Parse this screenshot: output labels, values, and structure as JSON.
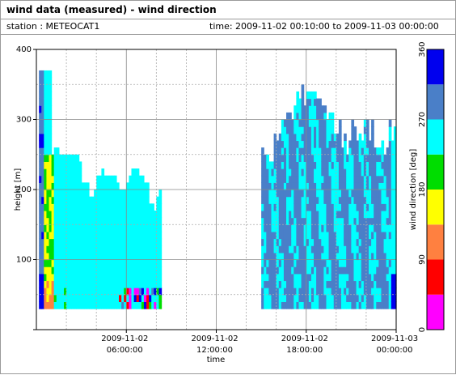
{
  "header": {
    "title": "wind data (measured) - wind direction",
    "station": "station : METEOCAT1",
    "time_range": "time: 2009-11-02 00:10:00 to 2009-11-03 00:00:00"
  },
  "chart_data": {
    "type": "heatmap",
    "xlabel": "time",
    "ylabel": "height [m]",
    "x_range_hours": [
      0,
      24
    ],
    "ylim": [
      0,
      400
    ],
    "x_ticks": [
      {
        "hour": 6,
        "line1": "2009-11-02",
        "line2": "06:00:00"
      },
      {
        "hour": 12,
        "line1": "2009-11-02",
        "line2": "12:00:00"
      },
      {
        "hour": 18,
        "line1": "2009-11-02",
        "line2": "18:00:00"
      },
      {
        "hour": 24,
        "line1": "2009-11-03",
        "line2": "00:00:00"
      }
    ],
    "y_ticks": [
      0,
      100,
      200,
      300,
      400
    ],
    "y_tick_labels": [
      "",
      "100",
      "200",
      "300",
      "400"
    ],
    "grid": true,
    "colorbar": {
      "label": "wind direction [deg]",
      "ticks": [
        "0",
        "90",
        "180",
        "270",
        "360"
      ],
      "bins": [
        {
          "from": 0,
          "to": 45,
          "color": "#ff00ff"
        },
        {
          "from": 45,
          "to": 90,
          "color": "#ff0000"
        },
        {
          "from": 90,
          "to": 135,
          "color": "#ff8040"
        },
        {
          "from": 135,
          "to": 180,
          "color": "#ffff00"
        },
        {
          "from": 180,
          "to": 225,
          "color": "#00dd00"
        },
        {
          "from": 225,
          "to": 270,
          "color": "#00ffff"
        },
        {
          "from": 270,
          "to": 315,
          "color": "#4a7fc8"
        },
        {
          "from": 315,
          "to": 360,
          "color": "#0000ee"
        }
      ]
    },
    "data_coverage": {
      "bin_minutes": 10,
      "lowest_gate_m": 30,
      "segments": [
        {
          "start_h": 0.17,
          "end_h": 8.2
        },
        {
          "start_h": 15.0,
          "end_h": 24.0
        }
      ],
      "max_height_m": 365
    }
  }
}
